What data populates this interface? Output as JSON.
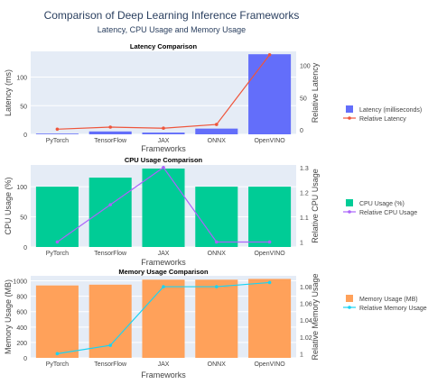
{
  "figure": {
    "title": "Comparison of Deep Learning Inference Frameworks",
    "subtitle": "Latency, CPU Usage and Memory Usage"
  },
  "colors": {
    "plot_bg": "#e5ecf6",
    "grid": "#ffffff",
    "axis_text": "#444444",
    "title_text": "#2a3f5f"
  },
  "chart_data": [
    {
      "type": "bar",
      "title": "Latency Comparison",
      "categories": [
        "PyTorch",
        "TensorFlow",
        "JAX",
        "ONNX",
        "OpenVINO"
      ],
      "xlabel": "Frameworks",
      "ylabel": "Latency (ms)",
      "ylabel_right": "Relative Latency",
      "ylim": [
        0,
        145
      ],
      "ylim_right": [
        -7,
        122
      ],
      "yticks": [
        0,
        50,
        100
      ],
      "yticks_right": [
        0,
        50,
        100
      ],
      "grid": true,
      "legend_position": "right",
      "series": [
        {
          "name": "Latency (milliseconds)",
          "type": "bar",
          "axis": "left",
          "color": "#636efa",
          "values": [
            1.2,
            5,
            3,
            10,
            140
          ]
        },
        {
          "name": "Relative Latency",
          "type": "line",
          "axis": "right",
          "color": "#ef553b",
          "values": [
            1,
            4.2,
            2.5,
            8.3,
            116.7
          ]
        }
      ]
    },
    {
      "type": "bar",
      "title": "CPU Usage Comparison",
      "categories": [
        "PyTorch",
        "TensorFlow",
        "JAX",
        "ONNX",
        "OpenVINO"
      ],
      "xlabel": "Frameworks",
      "ylabel": "CPU Usage (%)",
      "ylabel_right": "Relative CPU Usage",
      "ylim": [
        0,
        136
      ],
      "ylim_right": [
        0.98,
        1.31
      ],
      "yticks": [
        0,
        50,
        100
      ],
      "yticks_right": [
        1,
        1.1,
        1.2,
        1.3
      ],
      "grid": true,
      "legend_position": "right",
      "series": [
        {
          "name": "CPU Usage (%)",
          "type": "bar",
          "axis": "left",
          "color": "#00cc96",
          "values": [
            100,
            115,
            130,
            100,
            100
          ]
        },
        {
          "name": "Relative CPU Usage",
          "type": "line",
          "axis": "right",
          "color": "#ab63fa",
          "values": [
            1,
            1.15,
            1.3,
            1,
            1
          ]
        }
      ]
    },
    {
      "type": "bar",
      "title": "Memory Usage Comparison",
      "categories": [
        "PyTorch",
        "TensorFlow",
        "JAX",
        "ONNX",
        "OpenVINO"
      ],
      "xlabel": "Frameworks",
      "ylabel": "Memory Usage (MB)",
      "ylabel_right": "Relative Memory Usage",
      "ylim": [
        0,
        1065
      ],
      "ylim_right": [
        0.995,
        1.093
      ],
      "yticks": [
        0,
        200,
        400,
        600,
        800,
        1000
      ],
      "yticks_right": [
        1,
        1.02,
        1.04,
        1.06,
        1.08
      ],
      "grid": true,
      "legend_position": "right",
      "series": [
        {
          "name": "Memory Usage (MB)",
          "type": "bar",
          "axis": "left",
          "color": "#ffa15a",
          "values": [
            940,
            950,
            1015,
            1015,
            1025
          ]
        },
        {
          "name": "Relative Memory Usage",
          "type": "line",
          "axis": "right",
          "color": "#19d3f3",
          "values": [
            1,
            1.01,
            1.08,
            1.08,
            1.085
          ]
        }
      ]
    }
  ]
}
